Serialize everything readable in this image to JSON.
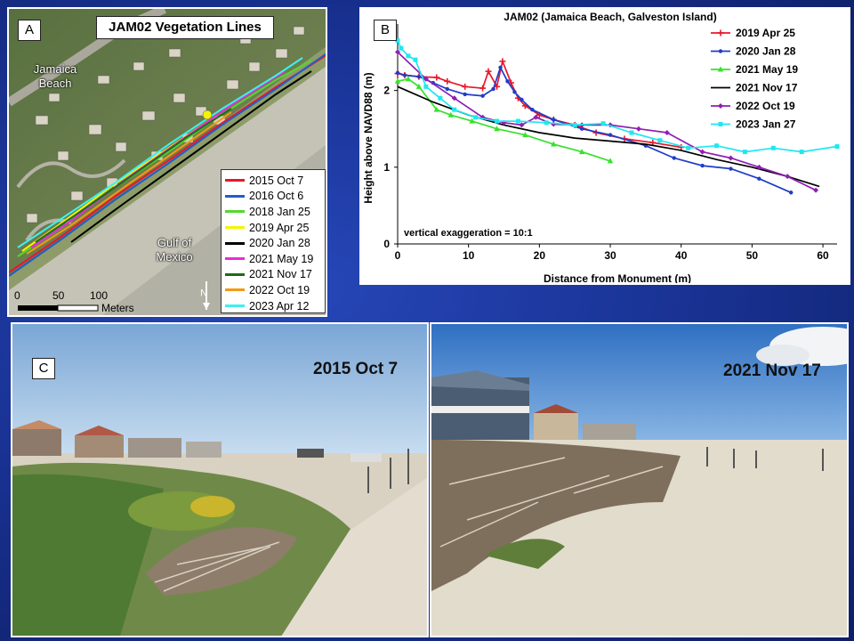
{
  "panel_a": {
    "letter": "A",
    "title": "JAM02 Vegetation Lines",
    "place_beach": "Jamaica Beach",
    "place_gulf": "Gulf of Mexico",
    "scale_labels": [
      "0",
      "50",
      "100"
    ],
    "scale_unit": "Meters",
    "north_label": "N",
    "legend": [
      {
        "label": "2015 Oct 7",
        "color": "#e8182b"
      },
      {
        "label": "2016 Oct 6",
        "color": "#1f5fc7"
      },
      {
        "label": "2018 Jan 25",
        "color": "#55d62d"
      },
      {
        "label": "2019 Apr 25",
        "color": "#f3f500"
      },
      {
        "label": "2020 Jan 28",
        "color": "#000000"
      },
      {
        "label": "2021 May 19",
        "color": "#e92bd6"
      },
      {
        "label": "2021 Nov 17",
        "color": "#1e6b16"
      },
      {
        "label": "2022 Oct 19",
        "color": "#f29a14"
      },
      {
        "label": "2023 Apr 12",
        "color": "#3ef0f0"
      }
    ]
  },
  "chart_data": {
    "letter": "B",
    "type": "line",
    "title": "JAM02 (Jamaica Beach, Galveston Island)",
    "xlabel": "Distance from Monument (m)",
    "ylabel": "Height above NAVD88 (m)",
    "xlim": [
      0,
      62
    ],
    "ylim": [
      0,
      2.75
    ],
    "xticks": [
      0,
      10,
      20,
      30,
      40,
      50,
      60
    ],
    "yticks": [
      0,
      1,
      2
    ],
    "grid": false,
    "legend_position": "top-right",
    "annotation": "vertical exaggeration = 10:1",
    "series": [
      {
        "name": "2019 Apr 25",
        "color": "#e8182b",
        "marker": "plus",
        "x": [
          0,
          1,
          3,
          5.5,
          7,
          9.5,
          12,
          12.8,
          14,
          14.8,
          16,
          17,
          18,
          20,
          22,
          25,
          28,
          32,
          36,
          40
        ],
        "y": [
          2.22,
          2.2,
          2.18,
          2.17,
          2.12,
          2.05,
          2.03,
          2.25,
          2.05,
          2.38,
          2.1,
          1.9,
          1.8,
          1.68,
          1.62,
          1.55,
          1.45,
          1.37,
          1.32,
          1.26
        ]
      },
      {
        "name": "2020 Jan 28",
        "color": "#1f3dc7",
        "marker": "dot",
        "x": [
          0,
          1,
          3,
          5,
          7,
          9.5,
          12,
          13.5,
          14.5,
          15.5,
          16.5,
          17.5,
          19,
          22,
          26,
          30,
          35,
          39,
          43,
          47,
          51,
          55.5
        ],
        "y": [
          2.23,
          2.2,
          2.18,
          2.1,
          2.02,
          1.95,
          1.93,
          2.02,
          2.3,
          2.12,
          1.98,
          1.88,
          1.75,
          1.62,
          1.5,
          1.42,
          1.28,
          1.12,
          1.02,
          0.98,
          0.85,
          0.67
        ]
      },
      {
        "name": "2021 May 19",
        "color": "#36e22a",
        "marker": "triangle",
        "x": [
          0,
          1.5,
          3,
          5.5,
          7.5,
          10.5,
          14,
          18,
          22,
          26,
          30
        ],
        "y": [
          2.12,
          2.15,
          2.05,
          1.75,
          1.68,
          1.6,
          1.5,
          1.42,
          1.3,
          1.2,
          1.08
        ]
      },
      {
        "name": "2021 Nov 17",
        "color": "#000000",
        "marker": "none",
        "x": [
          0,
          5,
          10,
          15,
          20,
          25,
          30,
          35,
          40,
          45,
          50,
          55,
          59.5
        ],
        "y": [
          2.05,
          1.85,
          1.68,
          1.55,
          1.45,
          1.38,
          1.34,
          1.3,
          1.22,
          1.1,
          1.0,
          0.88,
          0.75
        ]
      },
      {
        "name": "2022 Oct 19",
        "color": "#8f1fb2",
        "marker": "diamond",
        "x": [
          0,
          4,
          8,
          12,
          15,
          17.5,
          19.5,
          22,
          26,
          30,
          34,
          38,
          43,
          47,
          51,
          55,
          59
        ],
        "y": [
          2.5,
          2.15,
          1.9,
          1.65,
          1.58,
          1.55,
          1.65,
          1.56,
          1.55,
          1.55,
          1.5,
          1.45,
          1.2,
          1.12,
          1.0,
          0.88,
          0.7
        ]
      },
      {
        "name": "2023 Jan 27",
        "color": "#1ee8f0",
        "marker": "square",
        "x": [
          0,
          0.5,
          1.5,
          2.5,
          4,
          6,
          8,
          11,
          14,
          17,
          21,
          25,
          29,
          33,
          37,
          41,
          45,
          49,
          53,
          57,
          62
        ],
        "y": [
          2.65,
          2.55,
          2.45,
          2.4,
          2.05,
          1.9,
          1.75,
          1.65,
          1.6,
          1.6,
          1.58,
          1.55,
          1.57,
          1.45,
          1.35,
          1.25,
          1.28,
          1.2,
          1.25,
          1.2,
          1.27
        ]
      }
    ]
  },
  "panel_c": {
    "letter": "C",
    "left_date": "2015 Oct 7",
    "right_date": "2021 Nov 17"
  }
}
